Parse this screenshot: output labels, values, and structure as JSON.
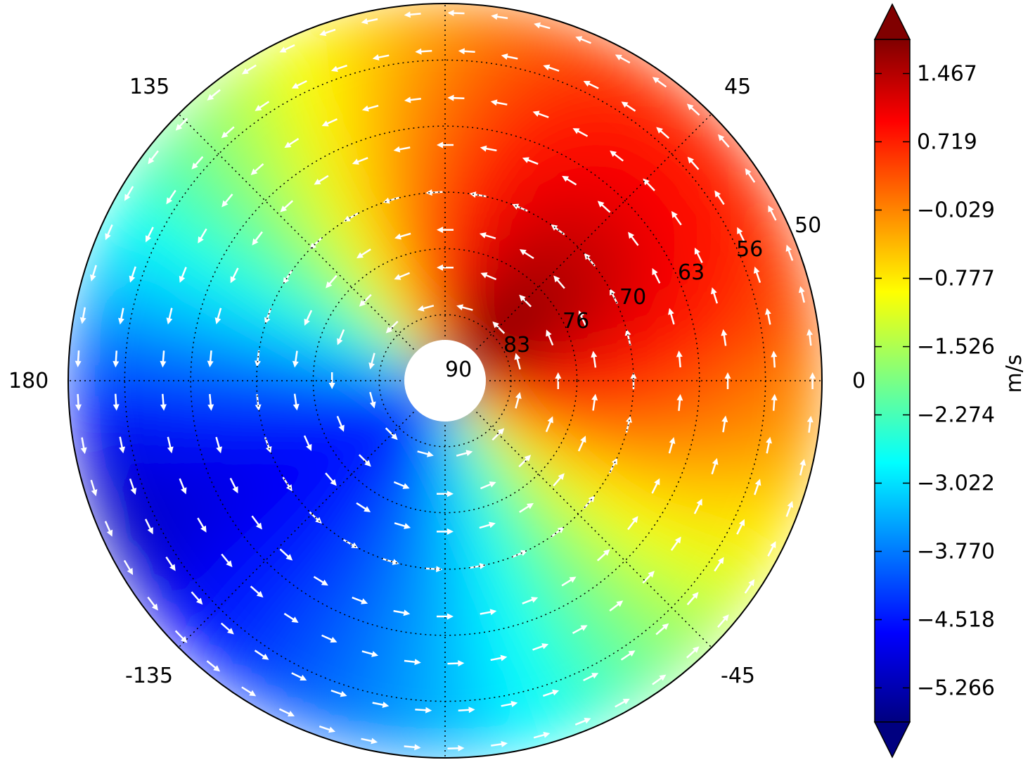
{
  "chart_data": {
    "type": "heatmap",
    "projection": "polar-stereographic",
    "longitude_labels": [
      "0",
      "45",
      "135",
      "180",
      "-135",
      "-45"
    ],
    "latitude_labels": [
      "50",
      "56",
      "63",
      "70",
      "76",
      "83",
      "90"
    ],
    "latitude_rings": [
      50,
      56,
      63,
      70,
      76,
      83
    ],
    "colorbar": {
      "label": "m/s",
      "ticks": [
        "1.467",
        "0.719",
        "−0.029",
        "−0.777",
        "−1.526",
        "−2.274",
        "−3.022",
        "−3.770",
        "−4.518",
        "−5.266"
      ],
      "tick_values": [
        1.467,
        0.719,
        -0.029,
        -0.777,
        -1.526,
        -2.274,
        -3.022,
        -3.77,
        -4.518,
        -5.266
      ],
      "extend": "both",
      "colormap": "jet"
    },
    "field_regions": [
      {
        "lon_from": -45,
        "lon_to": 90,
        "level": "high",
        "approx_value": 1.2
      },
      {
        "lon_from": 90,
        "lon_to": 150,
        "level": "moderate",
        "approx_value": -1.5
      },
      {
        "lon_from": 150,
        "lon_to": 210,
        "level": "low",
        "approx_value": -3.0
      },
      {
        "lon_from": -150,
        "lon_to": -100,
        "level": "lowest",
        "approx_value": -4.0
      }
    ],
    "vectors": {
      "color": "#ffffff",
      "direction": "counter-clockwise circulation"
    },
    "grid": true
  }
}
